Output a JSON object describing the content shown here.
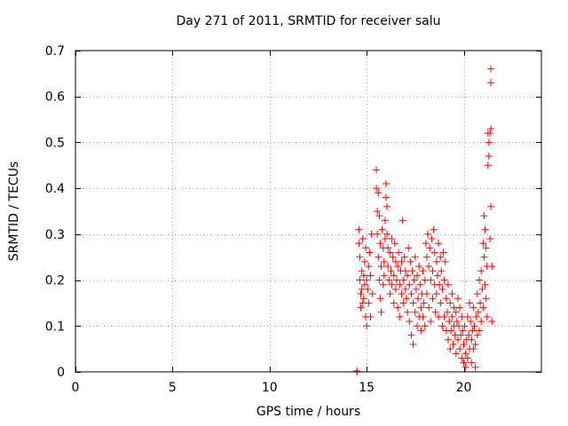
{
  "chart_data": {
    "type": "scatter",
    "title": "Day 271 of 2011, SRMTID for receiver salu",
    "xlabel": "GPS time / hours",
    "ylabel": "SRMTID / TECUs",
    "xlim": [
      0,
      24
    ],
    "ylim": [
      0,
      0.7
    ],
    "xticks": [
      0,
      5,
      10,
      15,
      20
    ],
    "xtick_labels": [
      "0",
      "5",
      "10",
      "15",
      "20"
    ],
    "yticks": [
      0,
      0.1,
      0.2,
      0.3,
      0.4,
      0.5,
      0.6,
      0.7
    ],
    "ytick_labels": [
      "0",
      "0.1",
      "0.2",
      "0.3",
      "0.4",
      "0.5",
      "0.6",
      "0.7"
    ],
    "grid": true,
    "marker": "+",
    "marker_color": "#ff0000",
    "series": [
      {
        "name": "SRMTID",
        "points": [
          [
            14.5,
            0.0
          ],
          [
            14.5,
            0.002
          ],
          [
            14.6,
            0.31
          ],
          [
            14.6,
            0.28
          ],
          [
            14.65,
            0.25
          ],
          [
            14.65,
            0.2
          ],
          [
            14.7,
            0.17
          ],
          [
            14.7,
            0.14
          ],
          [
            14.75,
            0.22
          ],
          [
            14.75,
            0.18
          ],
          [
            14.8,
            0.15
          ],
          [
            14.8,
            0.29
          ],
          [
            14.85,
            0.21
          ],
          [
            14.85,
            0.16
          ],
          [
            14.9,
            0.24
          ],
          [
            14.9,
            0.19
          ],
          [
            14.95,
            0.12
          ],
          [
            14.95,
            0.27
          ],
          [
            15.0,
            0.2
          ],
          [
            15.0,
            0.1
          ],
          [
            15.05,
            0.18
          ],
          [
            15.1,
            0.23
          ],
          [
            15.1,
            0.15
          ],
          [
            15.15,
            0.26
          ],
          [
            15.2,
            0.21
          ],
          [
            15.2,
            0.12
          ],
          [
            15.25,
            0.3
          ],
          [
            15.3,
            0.17
          ],
          [
            15.5,
            0.44
          ],
          [
            15.5,
            0.4
          ],
          [
            15.55,
            0.35
          ],
          [
            15.55,
            0.3
          ],
          [
            15.6,
            0.39
          ],
          [
            15.6,
            0.25
          ],
          [
            15.65,
            0.34
          ],
          [
            15.65,
            0.2
          ],
          [
            15.7,
            0.28
          ],
          [
            15.7,
            0.16
          ],
          [
            15.75,
            0.23
          ],
          [
            15.75,
            0.13
          ],
          [
            15.8,
            0.31
          ],
          [
            15.85,
            0.27
          ],
          [
            15.85,
            0.19
          ],
          [
            15.9,
            0.24
          ],
          [
            15.9,
            0.21
          ],
          [
            15.95,
            0.33
          ],
          [
            15.95,
            0.29
          ],
          [
            16.0,
            0.41
          ],
          [
            16.0,
            0.38
          ],
          [
            16.05,
            0.36
          ],
          [
            16.05,
            0.3
          ],
          [
            16.1,
            0.27
          ],
          [
            16.1,
            0.23
          ],
          [
            16.15,
            0.2
          ],
          [
            16.2,
            0.26
          ],
          [
            16.2,
            0.17
          ],
          [
            16.25,
            0.22
          ],
          [
            16.3,
            0.29
          ],
          [
            16.3,
            0.19
          ],
          [
            16.35,
            0.25
          ],
          [
            16.4,
            0.21
          ],
          [
            16.4,
            0.15
          ],
          [
            16.45,
            0.28
          ],
          [
            16.5,
            0.24
          ],
          [
            16.5,
            0.18
          ],
          [
            16.55,
            0.2
          ],
          [
            16.6,
            0.23
          ],
          [
            16.6,
            0.14
          ],
          [
            16.65,
            0.26
          ],
          [
            16.7,
            0.19
          ],
          [
            16.7,
            0.12
          ],
          [
            16.75,
            0.22
          ],
          [
            16.8,
            0.17
          ],
          [
            16.8,
            0.24
          ],
          [
            16.85,
            0.33
          ],
          [
            16.9,
            0.2
          ],
          [
            16.9,
            0.15
          ],
          [
            16.95,
            0.25
          ],
          [
            17.0,
            0.18
          ],
          [
            17.0,
            0.22
          ],
          [
            17.05,
            0.16
          ],
          [
            17.1,
            0.21
          ],
          [
            17.1,
            0.13
          ],
          [
            17.15,
            0.27
          ],
          [
            17.2,
            0.19
          ],
          [
            17.2,
            0.11
          ],
          [
            17.25,
            0.24
          ],
          [
            17.3,
            0.17
          ],
          [
            17.3,
            0.08
          ],
          [
            17.35,
            0.22
          ],
          [
            17.4,
            0.15
          ],
          [
            17.4,
            0.06
          ],
          [
            17.45,
            0.2
          ],
          [
            17.5,
            0.13
          ],
          [
            17.5,
            0.25
          ],
          [
            17.55,
            0.18
          ],
          [
            17.6,
            0.1
          ],
          [
            17.6,
            0.21
          ],
          [
            17.65,
            0.16
          ],
          [
            17.7,
            0.12
          ],
          [
            17.7,
            0.23
          ],
          [
            17.75,
            0.19
          ],
          [
            17.8,
            0.14
          ],
          [
            17.8,
            0.09
          ],
          [
            17.85,
            0.17
          ],
          [
            17.9,
            0.22
          ],
          [
            17.9,
            0.12
          ],
          [
            17.95,
            0.15
          ],
          [
            18.0,
            0.2
          ],
          [
            18.0,
            0.1
          ],
          [
            18.05,
            0.28
          ],
          [
            18.1,
            0.25
          ],
          [
            18.1,
            0.17
          ],
          [
            18.15,
            0.3
          ],
          [
            18.2,
            0.23
          ],
          [
            18.2,
            0.14
          ],
          [
            18.25,
            0.27
          ],
          [
            18.3,
            0.2
          ],
          [
            18.3,
            0.11
          ],
          [
            18.35,
            0.29
          ],
          [
            18.4,
            0.22
          ],
          [
            18.4,
            0.16
          ],
          [
            18.45,
            0.31
          ],
          [
            18.5,
            0.26
          ],
          [
            18.5,
            0.19
          ],
          [
            18.55,
            0.13
          ],
          [
            18.6,
            0.24
          ],
          [
            18.6,
            0.17
          ],
          [
            18.65,
            0.21
          ],
          [
            18.7,
            0.28
          ],
          [
            18.7,
            0.12
          ],
          [
            18.75,
            0.19
          ],
          [
            18.8,
            0.25
          ],
          [
            18.8,
            0.15
          ],
          [
            18.85,
            0.22
          ],
          [
            18.9,
            0.18
          ],
          [
            18.9,
            0.1
          ],
          [
            18.95,
            0.26
          ],
          [
            19.0,
            0.2
          ],
          [
            19.0,
            0.12
          ],
          [
            19.05,
            0.24
          ],
          [
            19.1,
            0.16
          ],
          [
            19.1,
            0.09
          ],
          [
            19.15,
            0.13
          ],
          [
            19.2,
            0.19
          ],
          [
            19.2,
            0.07
          ],
          [
            19.25,
            0.11
          ],
          [
            19.3,
            0.15
          ],
          [
            19.3,
            0.05
          ],
          [
            19.35,
            0.09
          ],
          [
            19.4,
            0.17
          ],
          [
            19.4,
            0.12
          ],
          [
            19.45,
            0.06
          ],
          [
            19.5,
            0.14
          ],
          [
            19.5,
            0.1
          ],
          [
            19.55,
            0.08
          ],
          [
            19.6,
            0.13
          ],
          [
            19.6,
            0.04
          ],
          [
            19.65,
            0.11
          ],
          [
            19.7,
            0.07
          ],
          [
            19.7,
            0.16
          ],
          [
            19.75,
            0.1
          ],
          [
            19.8,
            0.05
          ],
          [
            19.8,
            0.14
          ],
          [
            19.85,
            0.08
          ],
          [
            19.9,
            0.12
          ],
          [
            19.9,
            0.03
          ],
          [
            19.95,
            0.09
          ],
          [
            20.0,
            0.06
          ],
          [
            20.0,
            0.02
          ],
          [
            20.05,
            0.1
          ],
          [
            20.1,
            0.04
          ],
          [
            20.1,
            0.01
          ],
          [
            20.15,
            0.07
          ],
          [
            20.2,
            0.12
          ],
          [
            20.2,
            0.03
          ],
          [
            20.25,
            0.08
          ],
          [
            20.3,
            0.15
          ],
          [
            20.3,
            0.05
          ],
          [
            20.35,
            0.11
          ],
          [
            20.4,
            0.07
          ],
          [
            20.4,
            0.02
          ],
          [
            20.45,
            0.09
          ],
          [
            20.5,
            0.14
          ],
          [
            20.5,
            0.05
          ],
          [
            20.55,
            0.1
          ],
          [
            20.6,
            0.06
          ],
          [
            20.6,
            0.01
          ],
          [
            20.65,
            0.12
          ],
          [
            20.7,
            0.08
          ],
          [
            20.7,
            0.17
          ],
          [
            20.75,
            0.13
          ],
          [
            20.8,
            0.09
          ],
          [
            20.8,
            0.2
          ],
          [
            20.85,
            0.15
          ],
          [
            20.9,
            0.11
          ],
          [
            20.9,
            0.22
          ],
          [
            20.95,
            0.18
          ],
          [
            21.0,
            0.28
          ],
          [
            21.0,
            0.14
          ],
          [
            21.05,
            0.34
          ],
          [
            21.05,
            0.25
          ],
          [
            21.1,
            0.31
          ],
          [
            21.1,
            0.19
          ],
          [
            21.15,
            0.27
          ],
          [
            21.15,
            0.16
          ],
          [
            21.2,
            0.23
          ],
          [
            21.2,
            0.12
          ],
          [
            21.25,
            0.52
          ],
          [
            21.25,
            0.45
          ],
          [
            21.3,
            0.5
          ],
          [
            21.3,
            0.47
          ],
          [
            21.35,
            0.52
          ],
          [
            21.35,
            0.29
          ],
          [
            21.4,
            0.66
          ],
          [
            21.4,
            0.63
          ],
          [
            21.4,
            0.36
          ],
          [
            21.4,
            0.53
          ],
          [
            21.45,
            0.23
          ],
          [
            21.45,
            0.11
          ]
        ]
      }
    ]
  }
}
